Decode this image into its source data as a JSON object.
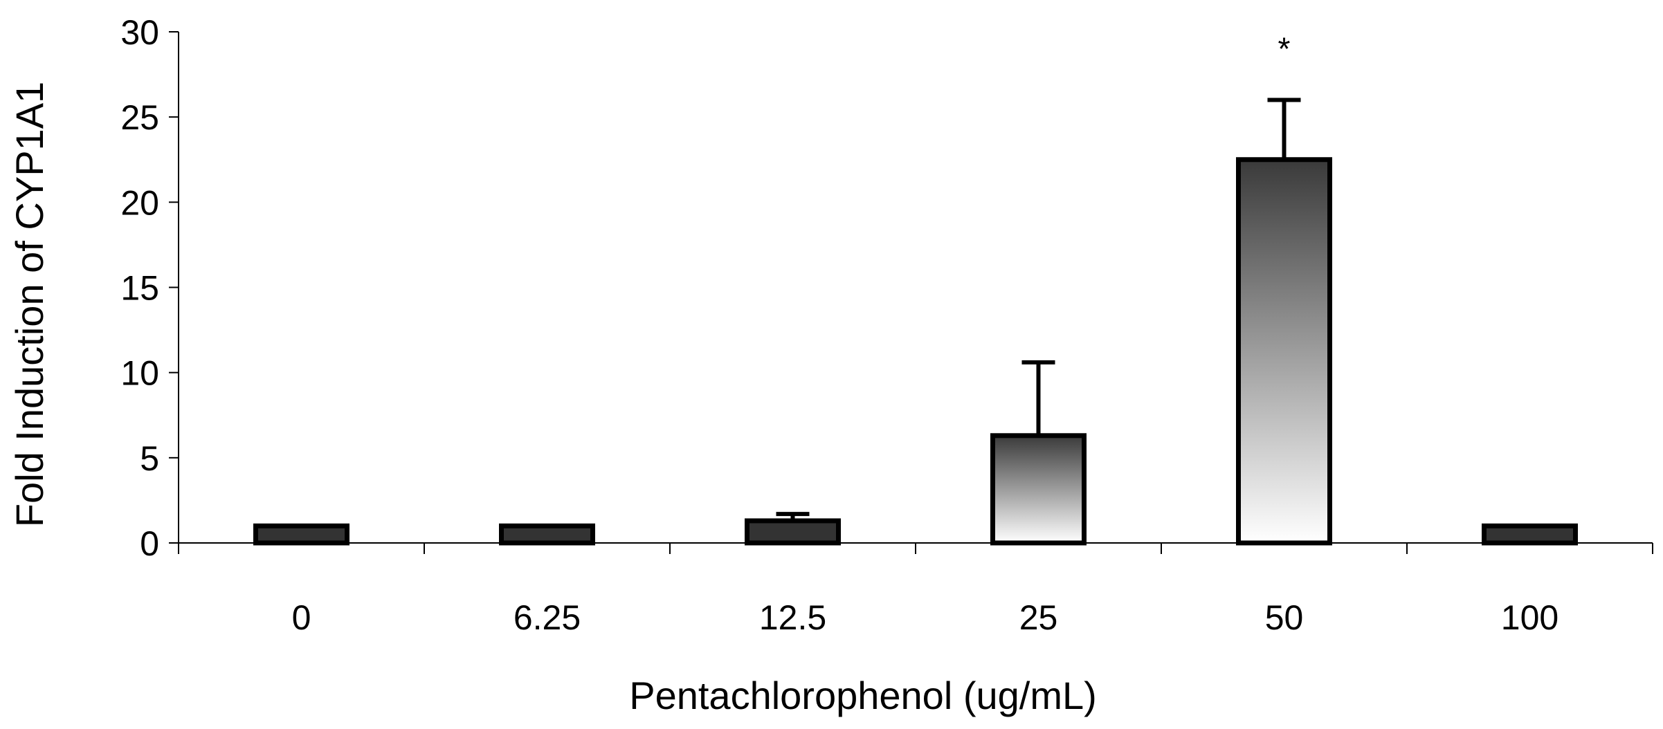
{
  "chart_data": {
    "type": "bar",
    "title": "",
    "xlabel": "Pentachlorophenol (ug/mL)",
    "ylabel": "Fold Induction of CYP1A1",
    "categories": [
      "0",
      "6.25",
      "12.5",
      "25",
      "50",
      "100"
    ],
    "values": [
      1.0,
      1.0,
      1.3,
      6.3,
      22.5,
      1.0
    ],
    "error_upper": [
      1.0,
      1.0,
      1.7,
      10.6,
      26.0,
      1.0
    ],
    "annotations": [
      "",
      "",
      "",
      "",
      "*",
      ""
    ],
    "ylim": [
      0,
      30
    ],
    "yticks": [
      "0",
      "5",
      "10",
      "15",
      "20",
      "25",
      "30"
    ],
    "grid": false,
    "legend": "none"
  },
  "colors": {
    "bar_dark": "#333333",
    "gradient_top": "#3a3a3a",
    "gradient_bottom": "#ffffff",
    "axis": "#000000"
  }
}
